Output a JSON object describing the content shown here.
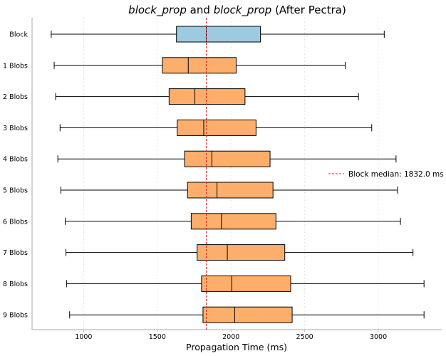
{
  "chart_data": {
    "type": "boxplot",
    "orientation": "horizontal",
    "title": {
      "parts": [
        {
          "text": "block_prop",
          "italic": true
        },
        {
          "text": " and ",
          "italic": false
        },
        {
          "text": "block_prop",
          "italic": true
        },
        {
          "text": " (After Pectra)",
          "italic": false
        }
      ]
    },
    "xlabel": "Propagation Time (ms)",
    "ylabel": "",
    "xlim": [
      650,
      3430
    ],
    "xticks": [
      1000,
      1500,
      2000,
      2500,
      3000
    ],
    "grid": {
      "x": true,
      "y": false,
      "style": "dotted"
    },
    "colors": {
      "block_box": "#9ecae1",
      "blob_box": "#fdae6b",
      "median_line": "#d62728",
      "edge": "#000000",
      "grid": "#dddddd"
    },
    "categories": [
      "Block",
      "1 Blobs",
      "2 Blobs",
      "3 Blobs",
      "4 Blobs",
      "5 Blobs",
      "6 Blobs",
      "7 Blobs",
      "8 Blobs",
      "9 Blobs"
    ],
    "boxes": [
      {
        "label": "Block",
        "whisker_low": 780,
        "q1": 1630,
        "median": 1832,
        "q3": 2200,
        "whisker_high": 3040
      },
      {
        "label": "1 Blobs",
        "whisker_low": 800,
        "q1": 1535,
        "median": 1710,
        "q3": 2035,
        "whisker_high": 2775
      },
      {
        "label": "2 Blobs",
        "whisker_low": 810,
        "q1": 1580,
        "median": 1755,
        "q3": 2095,
        "whisker_high": 2865
      },
      {
        "label": "3 Blobs",
        "whisker_low": 840,
        "q1": 1635,
        "median": 1815,
        "q3": 2170,
        "whisker_high": 2955
      },
      {
        "label": "4 Blobs",
        "whisker_low": 825,
        "q1": 1685,
        "median": 1870,
        "q3": 2265,
        "whisker_high": 3120
      },
      {
        "label": "5 Blobs",
        "whisker_low": 845,
        "q1": 1705,
        "median": 1905,
        "q3": 2285,
        "whisker_high": 3130
      },
      {
        "label": "6 Blobs",
        "whisker_low": 875,
        "q1": 1730,
        "median": 1935,
        "q3": 2305,
        "whisker_high": 3150
      },
      {
        "label": "7 Blobs",
        "whisker_low": 880,
        "q1": 1770,
        "median": 1975,
        "q3": 2365,
        "whisker_high": 3235
      },
      {
        "label": "8 Blobs",
        "whisker_low": 885,
        "q1": 1800,
        "median": 2005,
        "q3": 2405,
        "whisker_high": 3310
      },
      {
        "label": "9 Blobs",
        "whisker_low": 905,
        "q1": 1810,
        "median": 2025,
        "q3": 2415,
        "whisker_high": 3310
      }
    ],
    "reference_line": {
      "value": 1832,
      "label": "Block median: 1832.0 ms"
    },
    "legend": {
      "placement": "center-right"
    }
  }
}
